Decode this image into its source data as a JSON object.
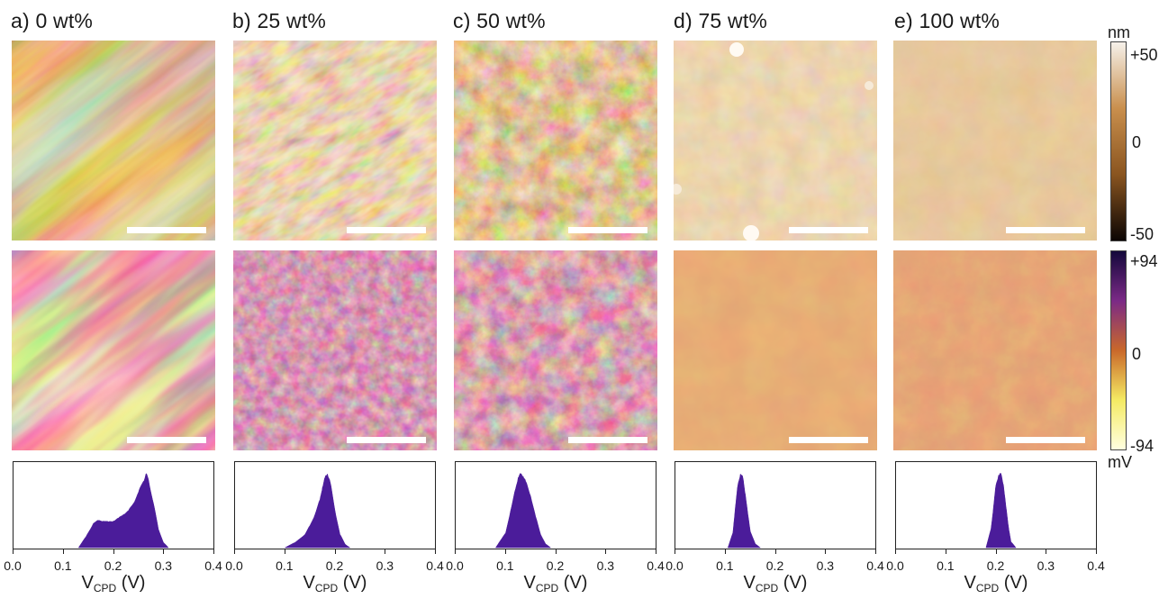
{
  "panels": [
    {
      "label": "a) 0 wt%"
    },
    {
      "label": "b) 25 wt%"
    },
    {
      "label": "c) 50 wt%"
    },
    {
      "label": "d) 75 wt%"
    },
    {
      "label": "e) 100 wt%"
    }
  ],
  "height_colorbar": {
    "unit": "nm",
    "max": "+50",
    "mid": "0",
    "min": "-50",
    "colors": [
      "#f6f1ea",
      "#c98f4d",
      "#8a5520",
      "#0b0503"
    ]
  },
  "cpd_colorbar": {
    "unit": "mV",
    "max": "+94",
    "mid": "0",
    "min": "-94",
    "colors": [
      "#13083b",
      "#7b2a86",
      "#c9682a",
      "#f4ea63",
      "#ffffe0"
    ]
  },
  "chart_data": [
    {
      "type": "area",
      "panel": "a",
      "xlabel_main": "V",
      "xlabel_sub": "CPD",
      "xlabel_unit": " (V)",
      "xlim": [
        0.0,
        0.4
      ],
      "xticks": [
        "0.0",
        "0.1",
        "0.2",
        "0.3",
        "0.4"
      ],
      "x": [
        0.13,
        0.145,
        0.16,
        0.17,
        0.18,
        0.19,
        0.2,
        0.21,
        0.22,
        0.23,
        0.24,
        0.25,
        0.26,
        0.265,
        0.27,
        0.28,
        0.29,
        0.3,
        0.31
      ],
      "y": [
        0.0,
        0.15,
        0.33,
        0.37,
        0.36,
        0.35,
        0.36,
        0.4,
        0.45,
        0.5,
        0.6,
        0.75,
        0.9,
        1.0,
        0.92,
        0.6,
        0.25,
        0.07,
        0.0
      ],
      "color": "#4b1c9a"
    },
    {
      "type": "area",
      "panel": "b",
      "xlabel_main": "V",
      "xlabel_sub": "CPD",
      "xlabel_unit": " (V)",
      "xlim": [
        0.0,
        0.4
      ],
      "xticks": [
        "0.0",
        "0.1",
        "0.2",
        "0.3",
        "0.4"
      ],
      "x": [
        0.1,
        0.12,
        0.14,
        0.15,
        0.16,
        0.17,
        0.175,
        0.18,
        0.185,
        0.19,
        0.2,
        0.21,
        0.22,
        0.23
      ],
      "y": [
        0.0,
        0.07,
        0.18,
        0.3,
        0.45,
        0.65,
        0.82,
        0.95,
        1.0,
        0.9,
        0.5,
        0.18,
        0.05,
        0.0
      ],
      "color": "#4b1c9a"
    },
    {
      "type": "area",
      "panel": "c",
      "xlabel_main": "V",
      "xlabel_sub": "CPD",
      "xlabel_unit": " (V)",
      "xlim": [
        0.0,
        0.4
      ],
      "xticks": [
        "0.0",
        "0.1",
        "0.2",
        "0.3",
        "0.4"
      ],
      "x": [
        0.08,
        0.1,
        0.11,
        0.12,
        0.125,
        0.13,
        0.135,
        0.14,
        0.15,
        0.16,
        0.17,
        0.18,
        0.19
      ],
      "y": [
        0.0,
        0.2,
        0.5,
        0.8,
        0.95,
        1.0,
        0.97,
        0.9,
        0.7,
        0.42,
        0.18,
        0.05,
        0.0
      ],
      "color": "#4b1c9a"
    },
    {
      "type": "area",
      "panel": "d",
      "xlabel_main": "V",
      "xlabel_sub": "CPD",
      "xlabel_unit": " (V)",
      "xlim": [
        0.0,
        0.4
      ],
      "xticks": [
        "0.0",
        "0.1",
        "0.2",
        "0.3",
        "0.4"
      ],
      "x": [
        0.105,
        0.115,
        0.12,
        0.125,
        0.13,
        0.135,
        0.14,
        0.145,
        0.15,
        0.16,
        0.17
      ],
      "y": [
        0.0,
        0.2,
        0.55,
        0.85,
        1.0,
        0.95,
        0.72,
        0.45,
        0.22,
        0.05,
        0.0
      ],
      "color": "#4b1c9a"
    },
    {
      "type": "area",
      "panel": "e",
      "xlabel_main": "V",
      "xlabel_sub": "CPD",
      "xlabel_unit": " (V)",
      "xlim": [
        0.0,
        0.4
      ],
      "xticks": [
        "0.0",
        "0.1",
        "0.2",
        "0.3",
        "0.4"
      ],
      "x": [
        0.18,
        0.19,
        0.195,
        0.2,
        0.205,
        0.21,
        0.215,
        0.22,
        0.225,
        0.23,
        0.24
      ],
      "y": [
        0.0,
        0.25,
        0.55,
        0.85,
        0.98,
        1.0,
        0.85,
        0.55,
        0.28,
        0.08,
        0.0
      ],
      "color": "#4b1c9a"
    }
  ]
}
